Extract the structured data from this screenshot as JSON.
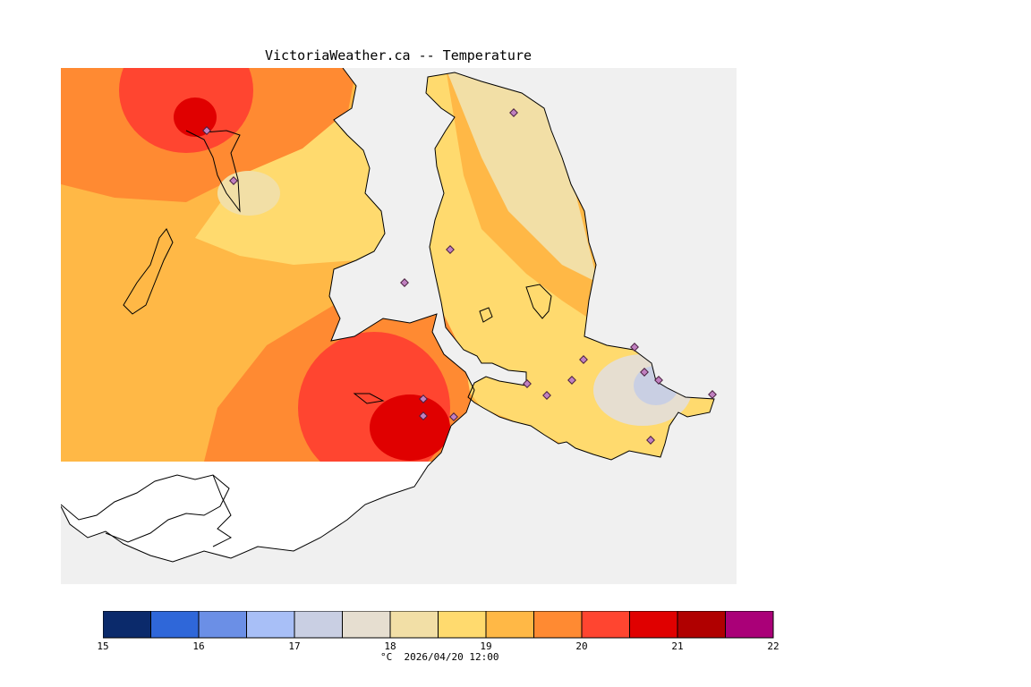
{
  "title": "VictoriaWeather.ca -- Temperature",
  "colorbar": {
    "bins": [
      {
        "from": 15,
        "to": 15.5,
        "color": "#0b2a6b"
      },
      {
        "from": 15.5,
        "to": 16,
        "color": "#2f67d9"
      },
      {
        "from": 16,
        "to": 16.5,
        "color": "#6b8fe6"
      },
      {
        "from": 16.5,
        "to": 17,
        "color": "#a8bff7"
      },
      {
        "from": 17,
        "to": 17.5,
        "color": "#c9cfe3"
      },
      {
        "from": 17.5,
        "to": 18,
        "color": "#e6ded0"
      },
      {
        "from": 18,
        "to": 18.5,
        "color": "#f2dfa6"
      },
      {
        "from": 18.5,
        "to": 19,
        "color": "#ffda6e"
      },
      {
        "from": 19,
        "to": 19.5,
        "color": "#ffb846"
      },
      {
        "from": 19.5,
        "to": 20,
        "color": "#ff8a32"
      },
      {
        "from": 20,
        "to": 20.5,
        "color": "#ff4530"
      },
      {
        "from": 20.5,
        "to": 21,
        "color": "#e00000"
      },
      {
        "from": 21,
        "to": 21.5,
        "color": "#b00000"
      },
      {
        "from": 21.5,
        "to": 22,
        "color": "#aa0078"
      }
    ],
    "tick_labels": [
      "15",
      "16",
      "17",
      "18",
      "19",
      "20",
      "21",
      "22"
    ],
    "caption": "°C  2026/04/20 12:00"
  },
  "colors": {
    "ocean": "#f0f0f0",
    "uncovered_land": "#ffffff",
    "coastline": "#000000",
    "station_fill": "#c080c0"
  }
}
